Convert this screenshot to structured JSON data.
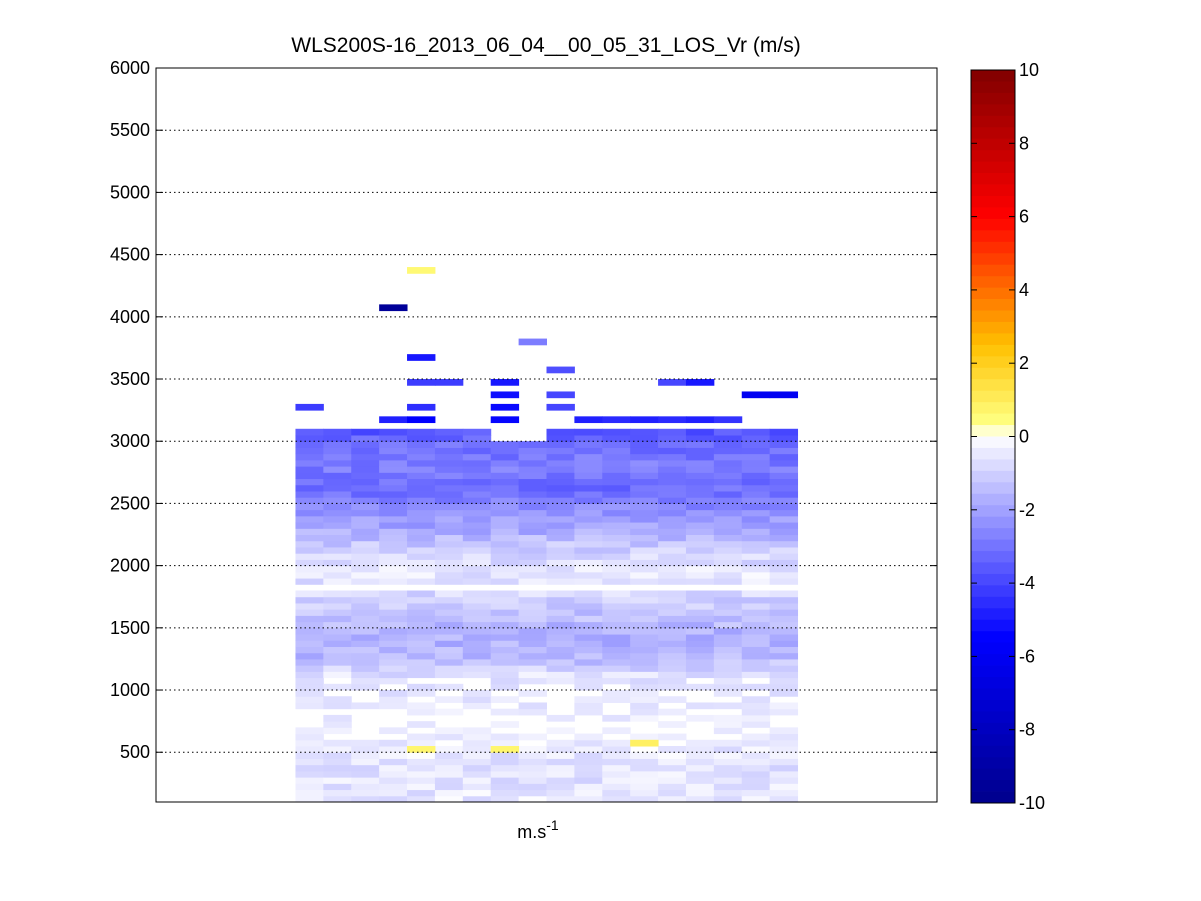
{
  "chart_data": {
    "type": "heatmap",
    "title": "WLS200S-16_2013_06_04__00_05_31_LOS_Vr (m/s)",
    "xlabel_base": "m.s",
    "xlabel_exp": "-1",
    "ylabel": "",
    "ylim": [
      100,
      6000
    ],
    "yticks": [
      500,
      1000,
      1500,
      2000,
      2500,
      3000,
      3500,
      4000,
      4500,
      5000,
      5500,
      6000
    ],
    "grid": true,
    "n_columns": 18,
    "column_range": [
      5,
      23
    ],
    "x_range": [
      0,
      28
    ],
    "color_limits": [
      -10,
      10
    ],
    "colorbar_ticks": [
      -10,
      -8,
      -6,
      -4,
      -2,
      0,
      2,
      4,
      6,
      8,
      10
    ],
    "colorbar_levels": 64,
    "colormap_stops": [
      {
        "v": -10,
        "c": "#00008c"
      },
      {
        "v": -5.5,
        "c": "#0000ff"
      },
      {
        "v": 0,
        "c": "#ffffff"
      },
      {
        "v": 0.4,
        "c": "#ffff80"
      },
      {
        "v": 2.5,
        "c": "#ffc000"
      },
      {
        "v": 6,
        "c": "#ff0000"
      },
      {
        "v": 10,
        "c": "#800000"
      }
    ],
    "profile": [
      {
        "alt": 150,
        "v": -0.5
      },
      {
        "alt": 250,
        "v": -0.6
      },
      {
        "alt": 400,
        "v": -0.6
      },
      {
        "alt": 700,
        "v": -0.2
      },
      {
        "alt": 1100,
        "v": -0.5
      },
      {
        "alt": 1250,
        "v": -1.5
      },
      {
        "alt": 1400,
        "v": -1.7
      },
      {
        "alt": 1600,
        "v": -1.4
      },
      {
        "alt": 1750,
        "v": -0.9
      },
      {
        "alt": 1950,
        "v": -0.5
      },
      {
        "alt": 2150,
        "v": -1.1
      },
      {
        "alt": 2300,
        "v": -1.9
      },
      {
        "alt": 2450,
        "v": -2.4
      },
      {
        "alt": 2600,
        "v": -3.2
      },
      {
        "alt": 2800,
        "v": -2.8
      },
      {
        "alt": 3000,
        "v": -3.2
      },
      {
        "alt": 3150,
        "v": -4.2
      }
    ],
    "sparse_cells": [
      {
        "col": 4,
        "alt": 4350,
        "v": 0.6
      },
      {
        "col": 3,
        "alt": 4050,
        "v": -9.5
      },
      {
        "col": 4,
        "alt": 3650,
        "v": -5.0
      },
      {
        "col": 8,
        "alt": 3775,
        "v": -2.8
      },
      {
        "col": 9,
        "alt": 3550,
        "v": -3.8
      },
      {
        "col": 4,
        "alt": 3450,
        "v": -4.2
      },
      {
        "col": 5,
        "alt": 3450,
        "v": -4.2
      },
      {
        "col": 7,
        "alt": 3450,
        "v": -5.0
      },
      {
        "col": 13,
        "alt": 3450,
        "v": -4.0
      },
      {
        "col": 14,
        "alt": 3450,
        "v": -5.0
      },
      {
        "col": 16,
        "alt": 3350,
        "v": -6.0
      },
      {
        "col": 17,
        "alt": 3350,
        "v": -6.0
      },
      {
        "col": 9,
        "alt": 3350,
        "v": -4.0
      },
      {
        "col": 7,
        "alt": 3350,
        "v": -5.2
      },
      {
        "col": 0,
        "alt": 3250,
        "v": -4.2
      },
      {
        "col": 4,
        "alt": 3250,
        "v": -4.5
      },
      {
        "col": 7,
        "alt": 3250,
        "v": -5.3
      },
      {
        "col": 9,
        "alt": 3250,
        "v": -4.0
      },
      {
        "col": 3,
        "alt": 3150,
        "v": -4.8
      },
      {
        "col": 4,
        "alt": 3150,
        "v": -5.5
      },
      {
        "col": 7,
        "alt": 3150,
        "v": -5.4
      },
      {
        "col": 10,
        "alt": 3150,
        "v": -4.8
      },
      {
        "col": 11,
        "alt": 3150,
        "v": -4.6
      },
      {
        "col": 12,
        "alt": 3150,
        "v": -4.8
      },
      {
        "col": 13,
        "alt": 3150,
        "v": -4.6
      },
      {
        "col": 14,
        "alt": 3150,
        "v": -4.8
      },
      {
        "col": 15,
        "alt": 3150,
        "v": -4.4
      },
      {
        "col": 4,
        "alt": 500,
        "v": 0.7
      },
      {
        "col": 7,
        "alt": 500,
        "v": 0.7
      },
      {
        "col": 12,
        "alt": 550,
        "v": 0.9
      }
    ]
  }
}
